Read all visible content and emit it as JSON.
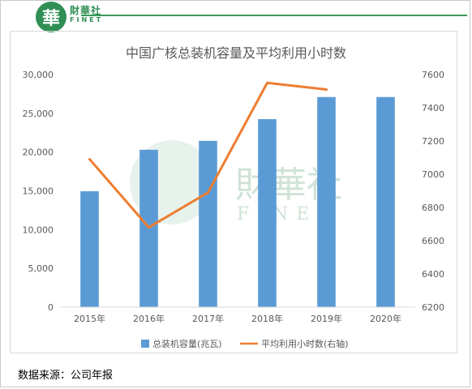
{
  "brand": {
    "logo_char": "華",
    "name_cn": "財華社",
    "name_en": "FINET"
  },
  "watermark": {
    "name_cn": "財華社",
    "name_en": "FINET"
  },
  "source_text": "数据来源：公司年报",
  "chart_data": {
    "type": "bar+line",
    "title": "中国广核总装机容量及平均利用小时数",
    "categories": [
      "2015年",
      "2016年",
      "2017年",
      "2018年",
      "2019年",
      "2020年"
    ],
    "series": [
      {
        "name": "总装机容量(兆瓦)",
        "type": "bar",
        "axis": "left",
        "values": [
          14950,
          20300,
          21450,
          24250,
          27100,
          27100
        ],
        "color": "#5b9bd5"
      },
      {
        "name": "平均利用小时数(右轴)",
        "type": "line",
        "axis": "right",
        "values": [
          7090,
          6680,
          6890,
          7550,
          7510,
          null
        ],
        "color": "#ed7d31"
      }
    ],
    "y_left": {
      "min": 0,
      "max": 30000,
      "step": 5000,
      "ticks": [
        "0",
        "5,000",
        "10,000",
        "15,000",
        "20,000",
        "25,000",
        "30,000"
      ]
    },
    "y_right": {
      "min": 6200,
      "max": 7600,
      "step": 200,
      "ticks": [
        "6200",
        "6400",
        "6600",
        "6800",
        "7000",
        "7200",
        "7400",
        "7600"
      ]
    },
    "grid": false,
    "legend": "bottom"
  }
}
